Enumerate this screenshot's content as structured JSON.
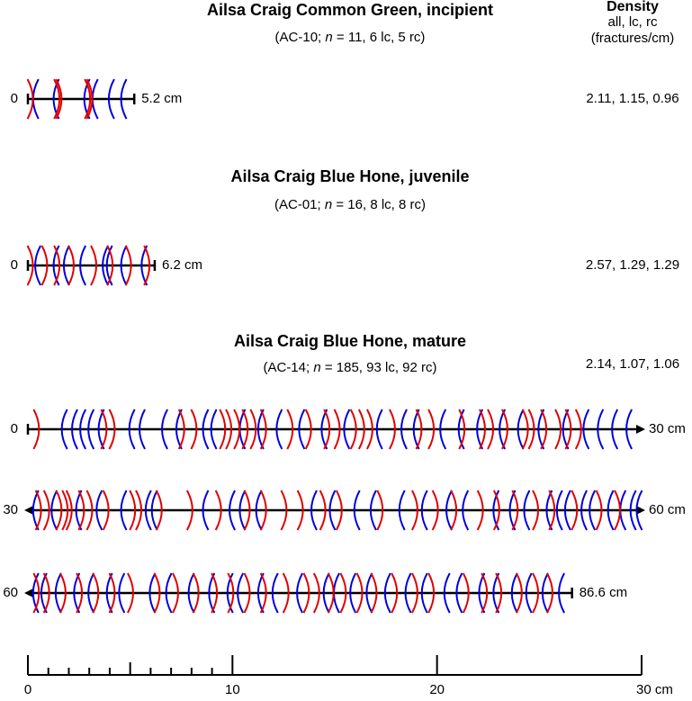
{
  "header": {
    "density_title": "Density",
    "density_sub": "all, lc, rc",
    "density_unit": "(fractures/cm)"
  },
  "sections": [
    {
      "title": "Ailsa Craig Common Green, incipient",
      "sub_pre": "(AC-10; ",
      "sub_n": "n",
      "sub_post": " =  11, 6 lc, 5 rc)",
      "density": "2.11, 1.15, 0.96",
      "rows": [
        {
          "start": "0",
          "end": "5.2 cm",
          "length": 5.2,
          "arrow_left": false,
          "arrow_right": false,
          "lc": [
            0.3,
            1.3,
            2.8,
            3.2,
            4.0,
            4.6
          ],
          "rc": [
            0.2,
            1.5,
            1.6,
            3.0,
            3.1
          ]
        }
      ]
    },
    {
      "title": "Ailsa Craig Blue Hone, juvenile",
      "sub_pre": "(AC-01; ",
      "sub_n": "n",
      "sub_post": " =  16, 8 lc, 8 rc)",
      "density": "2.57, 1.29, 1.29",
      "rows": [
        {
          "start": "0",
          "end": "6.2 cm",
          "length": 6.2,
          "arrow_left": false,
          "arrow_right": false,
          "lc": [
            0.4,
            1.3,
            1.8,
            2.6,
            3.7,
            3.9,
            4.6,
            5.6
          ],
          "rc": [
            0.2,
            0.9,
            1.5,
            2.2,
            3.3,
            4.1,
            5.0,
            5.9
          ]
        }
      ]
    },
    {
      "title": "Ailsa Craig Blue Hone, mature",
      "sub_pre": "(AC-14; ",
      "sub_n": "n",
      "sub_post": " =  185, 93 lc, 92 rc)",
      "density": "2.14, 1.07, 1.06",
      "rows": [
        {
          "start": "0",
          "end": "30 cm",
          "length": 30,
          "arrow_left": false,
          "arrow_right": true,
          "lc": [
            1.7,
            2.2,
            2.6,
            3.0,
            3.5,
            5.0,
            5.5,
            6.6,
            7.3,
            8.6,
            9.0,
            10.4,
            11.3,
            12.2,
            13.3,
            14.4,
            15.5,
            17.1,
            18.3,
            18.9,
            20.2,
            21.1,
            22.0,
            23.1,
            24.0,
            25.0,
            26.2,
            27.2,
            27.9,
            28.6,
            29.3
          ],
          "rc": [
            0.5,
            3.8,
            4.2,
            7.6,
            8.2,
            9.6,
            9.9,
            10.3,
            10.7,
            11.1,
            11.6,
            12.9,
            13.8,
            14.7,
            15.2,
            16.0,
            16.4,
            16.8,
            17.9,
            19.2,
            19.8,
            21.3,
            22.3,
            22.7,
            23.4,
            24.4,
            24.7,
            25.3,
            26.0,
            26.5,
            27.0
          ]
        },
        {
          "start": "30",
          "end": "60 cm",
          "length": 30,
          "arrow_left": true,
          "arrow_right": true,
          "lc": [
            0.3,
            1.2,
            2.4,
            3.4,
            4.6,
            5.8,
            6.1,
            8.6,
            9.9,
            10.4,
            11.2,
            13.9,
            14.8,
            16.0,
            16.8,
            18.2,
            19.3,
            20.5,
            21.3,
            22.8,
            23.6,
            24.3,
            25.4,
            25.9,
            26.3,
            27.1,
            27.5,
            28.4,
            29.0,
            29.5,
            29.8
          ],
          "rc": [
            0.6,
            1.0,
            1.6,
            1.9,
            2.1,
            2.7,
            3.1,
            3.9,
            5.2,
            5.5,
            6.5,
            8.0,
            9.4,
            10.8,
            11.6,
            12.6,
            13.4,
            14.5,
            15.3,
            17.3,
            19.0,
            20.0,
            20.9,
            22.2,
            23.0,
            23.9,
            24.9,
            25.7,
            26.8,
            28.0,
            28.9
          ]
        },
        {
          "start": "60",
          "end": "86.6 cm",
          "length": 26.6,
          "arrow_left": true,
          "arrow_right": false,
          "lc": [
            0.3,
            0.7,
            1.4,
            2.3,
            3.0,
            3.9,
            4.5,
            6.0,
            6.8,
            7.9,
            8.9,
            9.8,
            10.3,
            11.3,
            12.0,
            13.2,
            14.5,
            15.0,
            15.8,
            16.6,
            17.5,
            18.5,
            19.3,
            20.4,
            21.0,
            22.1,
            22.8,
            23.7,
            24.4,
            25.2,
            26.0
          ],
          "rc": [
            0.5,
            1.0,
            1.8,
            2.6,
            3.4,
            4.2,
            5.1,
            6.4,
            7.3,
            8.3,
            9.2,
            10.0,
            10.8,
            11.6,
            12.7,
            13.7,
            14.2,
            14.9,
            15.5,
            16.3,
            17.0,
            18.0,
            19.0,
            19.8,
            21.5,
            22.4,
            23.1,
            24.1,
            24.9,
            25.6
          ]
        }
      ]
    }
  ],
  "scale": {
    "major": [
      0,
      10,
      20,
      {
        "value": 30,
        "label": "30 cm"
      }
    ],
    "minor": [
      1,
      2,
      3,
      4,
      5,
      6,
      7,
      8,
      9
    ],
    "lc_color": "#0000dd",
    "rc_color": "#e00000"
  }
}
